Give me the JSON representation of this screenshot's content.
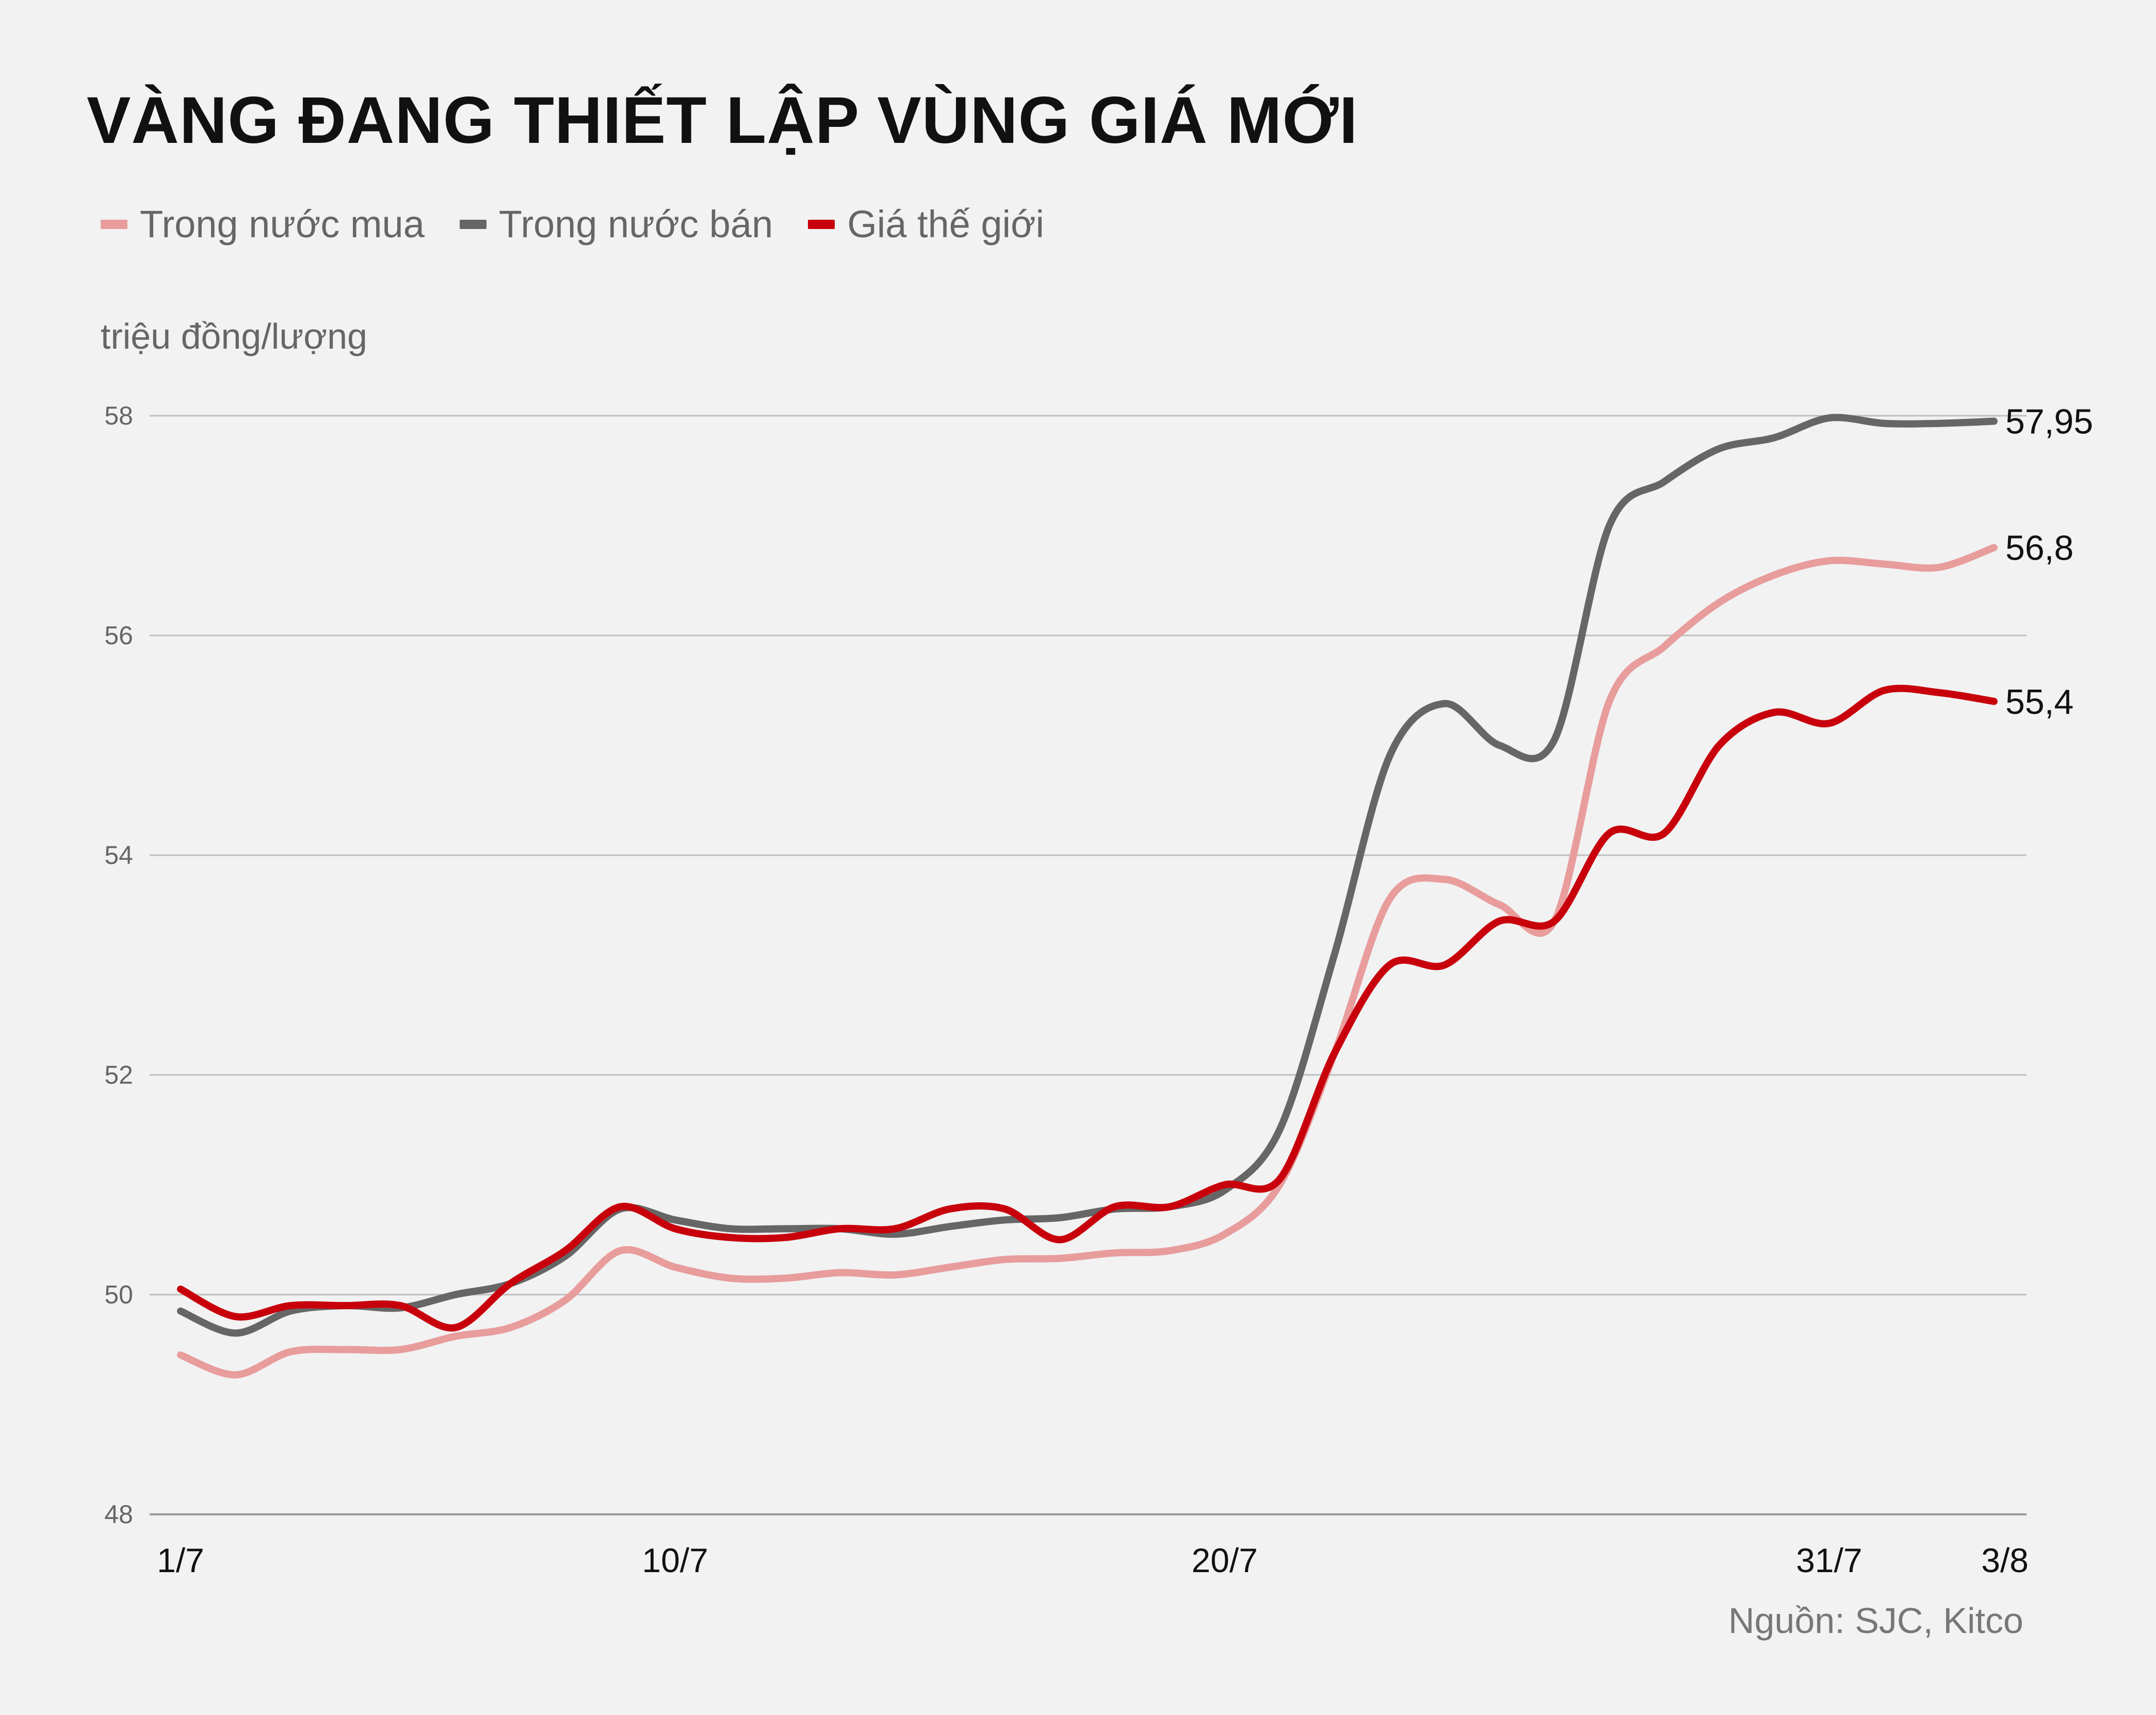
{
  "title": "VÀNG ĐANG THIẾT LẬP VÙNG GIÁ MỚI",
  "y_unit": "triệu đồng/lượng",
  "source": "Nguồn: SJC, Kitco",
  "legend": [
    {
      "label": "Trong nước mua",
      "color": "#e89c9c"
    },
    {
      "label": "Trong nước bán",
      "color": "#666666"
    },
    {
      "label": "Giá thế giới",
      "color": "#c8000b"
    }
  ],
  "chart_data": {
    "type": "line",
    "title": "VÀNG ĐANG THIẾT LẬP VÙNG GIÁ MỚI",
    "ylabel": "triệu đồng/lượng",
    "xlabel": "",
    "ylim": [
      48,
      58
    ],
    "yticks": [
      48,
      50,
      52,
      54,
      56,
      58
    ],
    "xlim": [
      0,
      33
    ],
    "xticks": [
      {
        "x": 0,
        "label": "1/7"
      },
      {
        "x": 9,
        "label": "10/7"
      },
      {
        "x": 19,
        "label": "20/7"
      },
      {
        "x": 30,
        "label": "31/7"
      },
      {
        "x": 33,
        "label": "3/8"
      }
    ],
    "grid": true,
    "series": [
      {
        "name": "Trong nước mua",
        "color": "#e89c9c",
        "end_label": "56,8",
        "points": [
          [
            0,
            49.45
          ],
          [
            1,
            49.27
          ],
          [
            2,
            49.48
          ],
          [
            3,
            49.5
          ],
          [
            4,
            49.5
          ],
          [
            5,
            49.62
          ],
          [
            6,
            49.7
          ],
          [
            7,
            49.95
          ],
          [
            8,
            50.4
          ],
          [
            9,
            50.25
          ],
          [
            10,
            50.15
          ],
          [
            11,
            50.15
          ],
          [
            12,
            50.2
          ],
          [
            13,
            50.18
          ],
          [
            14,
            50.25
          ],
          [
            15,
            50.32
          ],
          [
            16,
            50.33
          ],
          [
            17,
            50.38
          ],
          [
            18,
            50.4
          ],
          [
            19,
            50.55
          ],
          [
            20,
            51.0
          ],
          [
            21,
            52.2
          ],
          [
            22,
            53.6
          ],
          [
            23,
            53.78
          ],
          [
            24,
            53.55
          ],
          [
            25,
            53.4
          ],
          [
            26,
            55.4
          ],
          [
            27,
            55.9
          ],
          [
            28,
            56.3
          ],
          [
            29,
            56.55
          ],
          [
            30,
            56.68
          ],
          [
            31,
            56.65
          ],
          [
            32,
            56.62
          ],
          [
            33,
            56.8
          ]
        ]
      },
      {
        "name": "Trong nước bán",
        "color": "#666666",
        "end_label": "57,95",
        "points": [
          [
            0,
            49.85
          ],
          [
            1,
            49.65
          ],
          [
            2,
            49.85
          ],
          [
            3,
            49.9
          ],
          [
            4,
            49.88
          ],
          [
            5,
            50.0
          ],
          [
            6,
            50.1
          ],
          [
            7,
            50.35
          ],
          [
            8,
            50.78
          ],
          [
            9,
            50.68
          ],
          [
            10,
            50.6
          ],
          [
            11,
            50.6
          ],
          [
            12,
            50.6
          ],
          [
            13,
            50.55
          ],
          [
            14,
            50.62
          ],
          [
            15,
            50.68
          ],
          [
            16,
            50.7
          ],
          [
            17,
            50.78
          ],
          [
            18,
            50.8
          ],
          [
            19,
            50.95
          ],
          [
            20,
            51.5
          ],
          [
            21,
            53.1
          ],
          [
            22,
            54.9
          ],
          [
            23,
            55.38
          ],
          [
            24,
            55.0
          ],
          [
            25,
            55.05
          ],
          [
            26,
            57.0
          ],
          [
            27,
            57.4
          ],
          [
            28,
            57.7
          ],
          [
            29,
            57.8
          ],
          [
            30,
            57.98
          ],
          [
            31,
            57.93
          ],
          [
            32,
            57.93
          ],
          [
            33,
            57.95
          ]
        ]
      },
      {
        "name": "Giá thế giới",
        "color": "#c8000b",
        "end_label": "55,4",
        "points": [
          [
            0,
            50.05
          ],
          [
            1,
            49.8
          ],
          [
            2,
            49.9
          ],
          [
            3,
            49.9
          ],
          [
            4,
            49.9
          ],
          [
            5,
            49.7
          ],
          [
            6,
            50.1
          ],
          [
            7,
            50.4
          ],
          [
            8,
            50.8
          ],
          [
            9,
            50.6
          ],
          [
            10,
            50.52
          ],
          [
            11,
            50.52
          ],
          [
            12,
            50.6
          ],
          [
            13,
            50.6
          ],
          [
            14,
            50.78
          ],
          [
            15,
            50.78
          ],
          [
            16,
            50.5
          ],
          [
            17,
            50.8
          ],
          [
            18,
            50.8
          ],
          [
            19,
            51.0
          ],
          [
            20,
            51.05
          ],
          [
            21,
            52.2
          ],
          [
            22,
            53.0
          ],
          [
            23,
            53.0
          ],
          [
            24,
            53.4
          ],
          [
            25,
            53.4
          ],
          [
            26,
            54.2
          ],
          [
            27,
            54.2
          ],
          [
            28,
            55.0
          ],
          [
            29,
            55.3
          ],
          [
            30,
            55.2
          ],
          [
            31,
            55.5
          ],
          [
            32,
            55.48
          ],
          [
            33,
            55.4
          ]
        ]
      }
    ]
  }
}
